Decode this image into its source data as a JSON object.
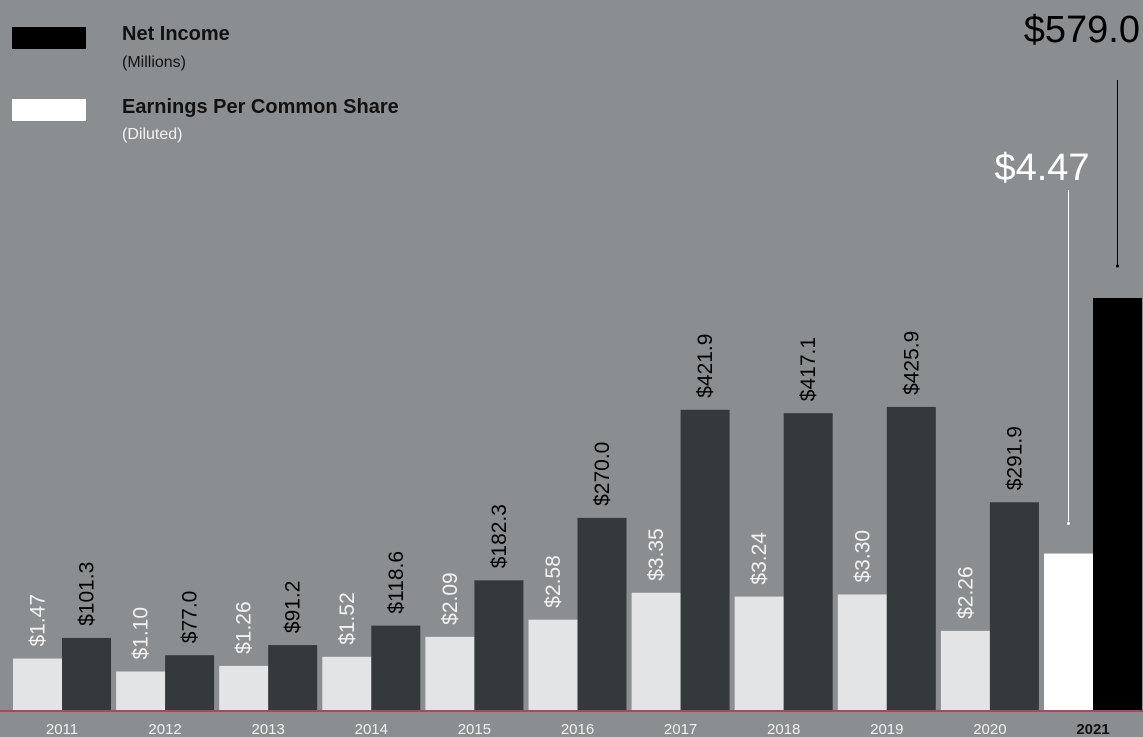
{
  "legend": {
    "net_income_title": "Net Income",
    "net_income_sub": "(Millions)",
    "eps_title": "Earnings Per Common Share",
    "eps_sub": "(Diluted)"
  },
  "colors": {
    "background": "#8b8e90",
    "net_income": "#343a3c",
    "eps": "#e3e4e6",
    "highlight_net_income": "#000000",
    "highlight_eps": "#ffffff",
    "baseline": "#b0324a"
  },
  "chart_data": {
    "type": "bar",
    "categories": [
      "2011",
      "2012",
      "2013",
      "2014",
      "2015",
      "2016",
      "2017",
      "2018",
      "2019",
      "2020",
      "2021"
    ],
    "highlight_category": "2021",
    "series": [
      {
        "name": "Earnings Per Common Share",
        "values": [
          1.47,
          1.1,
          1.26,
          1.52,
          2.09,
          2.58,
          3.35,
          3.24,
          3.3,
          2.26,
          4.47
        ],
        "labels": [
          "$1.47",
          "$1.10",
          "$1.26",
          "$1.52",
          "$2.09",
          "$2.58",
          "$3.35",
          "$3.24",
          "$3.30",
          "$2.26",
          "$4.47"
        ]
      },
      {
        "name": "Net Income",
        "values": [
          101.3,
          77.0,
          91.2,
          118.6,
          182.3,
          270.0,
          421.9,
          417.1,
          425.9,
          291.9,
          579.0
        ],
        "labels": [
          "$101.3",
          "$77.0",
          "$91.2",
          "$118.6",
          "$182.3",
          "$270.0",
          "$421.9",
          "$417.1",
          "$425.9",
          "$291.9",
          "$579.0"
        ]
      }
    ],
    "grid": false
  }
}
